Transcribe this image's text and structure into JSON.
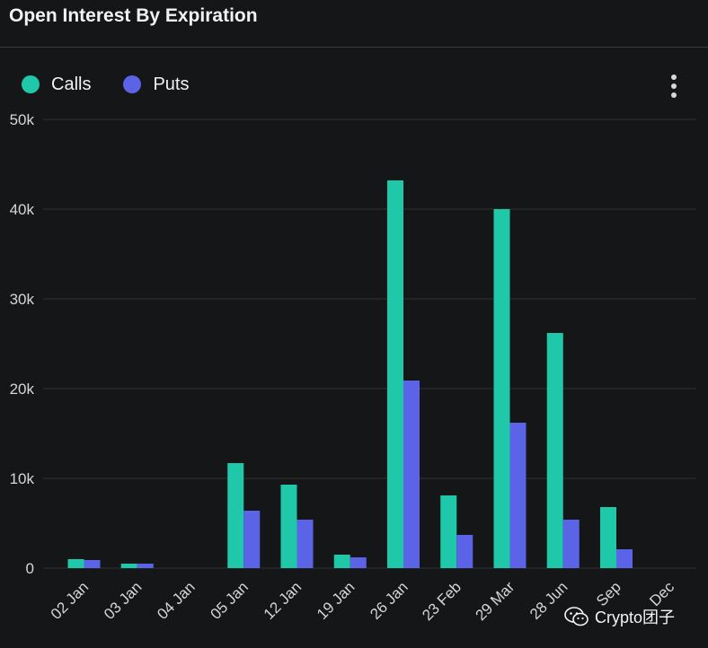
{
  "title": "Open Interest By Expiration",
  "legend": {
    "calls_label": "Calls",
    "puts_label": "Puts"
  },
  "menu": {
    "icon": "more-vertical-icon"
  },
  "watermark": {
    "text": "Crypto团子",
    "icon": "wechat-icon"
  },
  "colors": {
    "calls": "#1ec8a8",
    "puts": "#5b63e6",
    "background": "#151617",
    "grid": "#2f3032",
    "axis_text": "#d6d6d6"
  },
  "chart_data": {
    "type": "bar",
    "title": "Open Interest By Expiration",
    "xlabel": "",
    "ylabel": "",
    "categories": [
      "02 Jan",
      "03 Jan",
      "04 Jan",
      "05 Jan",
      "12 Jan",
      "19 Jan",
      "26 Jan",
      "23 Feb",
      "29 Mar",
      "28 Jun",
      "Sep",
      "Dec"
    ],
    "series": [
      {
        "name": "Calls",
        "values": [
          1000,
          500,
          0,
          11700,
          9300,
          1500,
          43200,
          8100,
          40000,
          26200,
          6800,
          0
        ]
      },
      {
        "name": "Puts",
        "values": [
          900,
          500,
          0,
          6400,
          5400,
          1200,
          20900,
          3700,
          16200,
          5400,
          2100,
          0
        ]
      }
    ],
    "ylim": [
      0,
      50000
    ],
    "yticks": [
      "0",
      "10k",
      "20k",
      "30k",
      "40k",
      "50k"
    ],
    "grid": true,
    "legend_position": "top-left"
  }
}
